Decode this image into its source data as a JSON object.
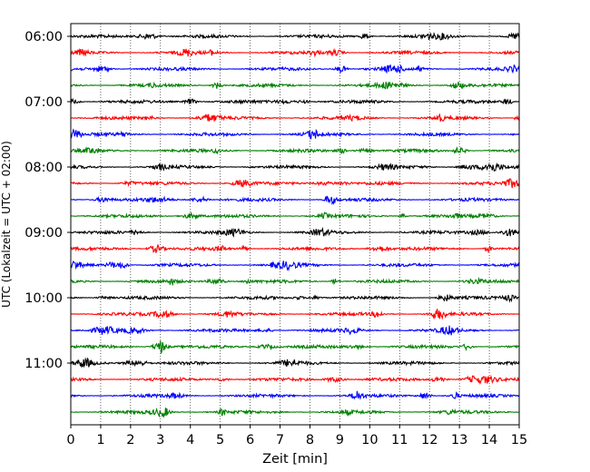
{
  "chart_data": {
    "type": "line",
    "title": "",
    "xlabel": "Zeit  [min]",
    "ylabel": "UTC (Lokalzeit = UTC + 02:00)",
    "xlim": [
      0,
      15
    ],
    "x_ticks": [
      0,
      1,
      2,
      3,
      4,
      5,
      6,
      7,
      8,
      9,
      10,
      11,
      12,
      13,
      14,
      15
    ],
    "y_tick_labels": [
      "06:00",
      "07:00",
      "08:00",
      "09:00",
      "10:00",
      "11:00"
    ],
    "grid": "vertical dotted at each minute",
    "trace_colors": [
      "#000000",
      "#ff0000",
      "#0000ff",
      "#008000"
    ],
    "traces": [
      {
        "start": "06:00",
        "color": "#000000"
      },
      {
        "start": "06:15",
        "color": "#ff0000"
      },
      {
        "start": "06:30",
        "color": "#0000ff"
      },
      {
        "start": "06:45",
        "color": "#008000"
      },
      {
        "start": "07:00",
        "color": "#000000"
      },
      {
        "start": "07:15",
        "color": "#ff0000"
      },
      {
        "start": "07:30",
        "color": "#0000ff"
      },
      {
        "start": "07:45",
        "color": "#008000"
      },
      {
        "start": "08:00",
        "color": "#000000"
      },
      {
        "start": "08:15",
        "color": "#ff0000"
      },
      {
        "start": "08:30",
        "color": "#0000ff"
      },
      {
        "start": "08:45",
        "color": "#008000"
      },
      {
        "start": "09:00",
        "color": "#000000"
      },
      {
        "start": "09:15",
        "color": "#ff0000"
      },
      {
        "start": "09:30",
        "color": "#0000ff"
      },
      {
        "start": "09:45",
        "color": "#008000"
      },
      {
        "start": "10:00",
        "color": "#000000"
      },
      {
        "start": "10:15",
        "color": "#ff0000"
      },
      {
        "start": "10:30",
        "color": "#0000ff"
      },
      {
        "start": "10:45",
        "color": "#008000"
      },
      {
        "start": "11:00",
        "color": "#000000"
      },
      {
        "start": "11:15",
        "color": "#ff0000"
      },
      {
        "start": "11:30",
        "color": "#0000ff"
      },
      {
        "start": "11:45",
        "color": "#008000"
      }
    ]
  }
}
